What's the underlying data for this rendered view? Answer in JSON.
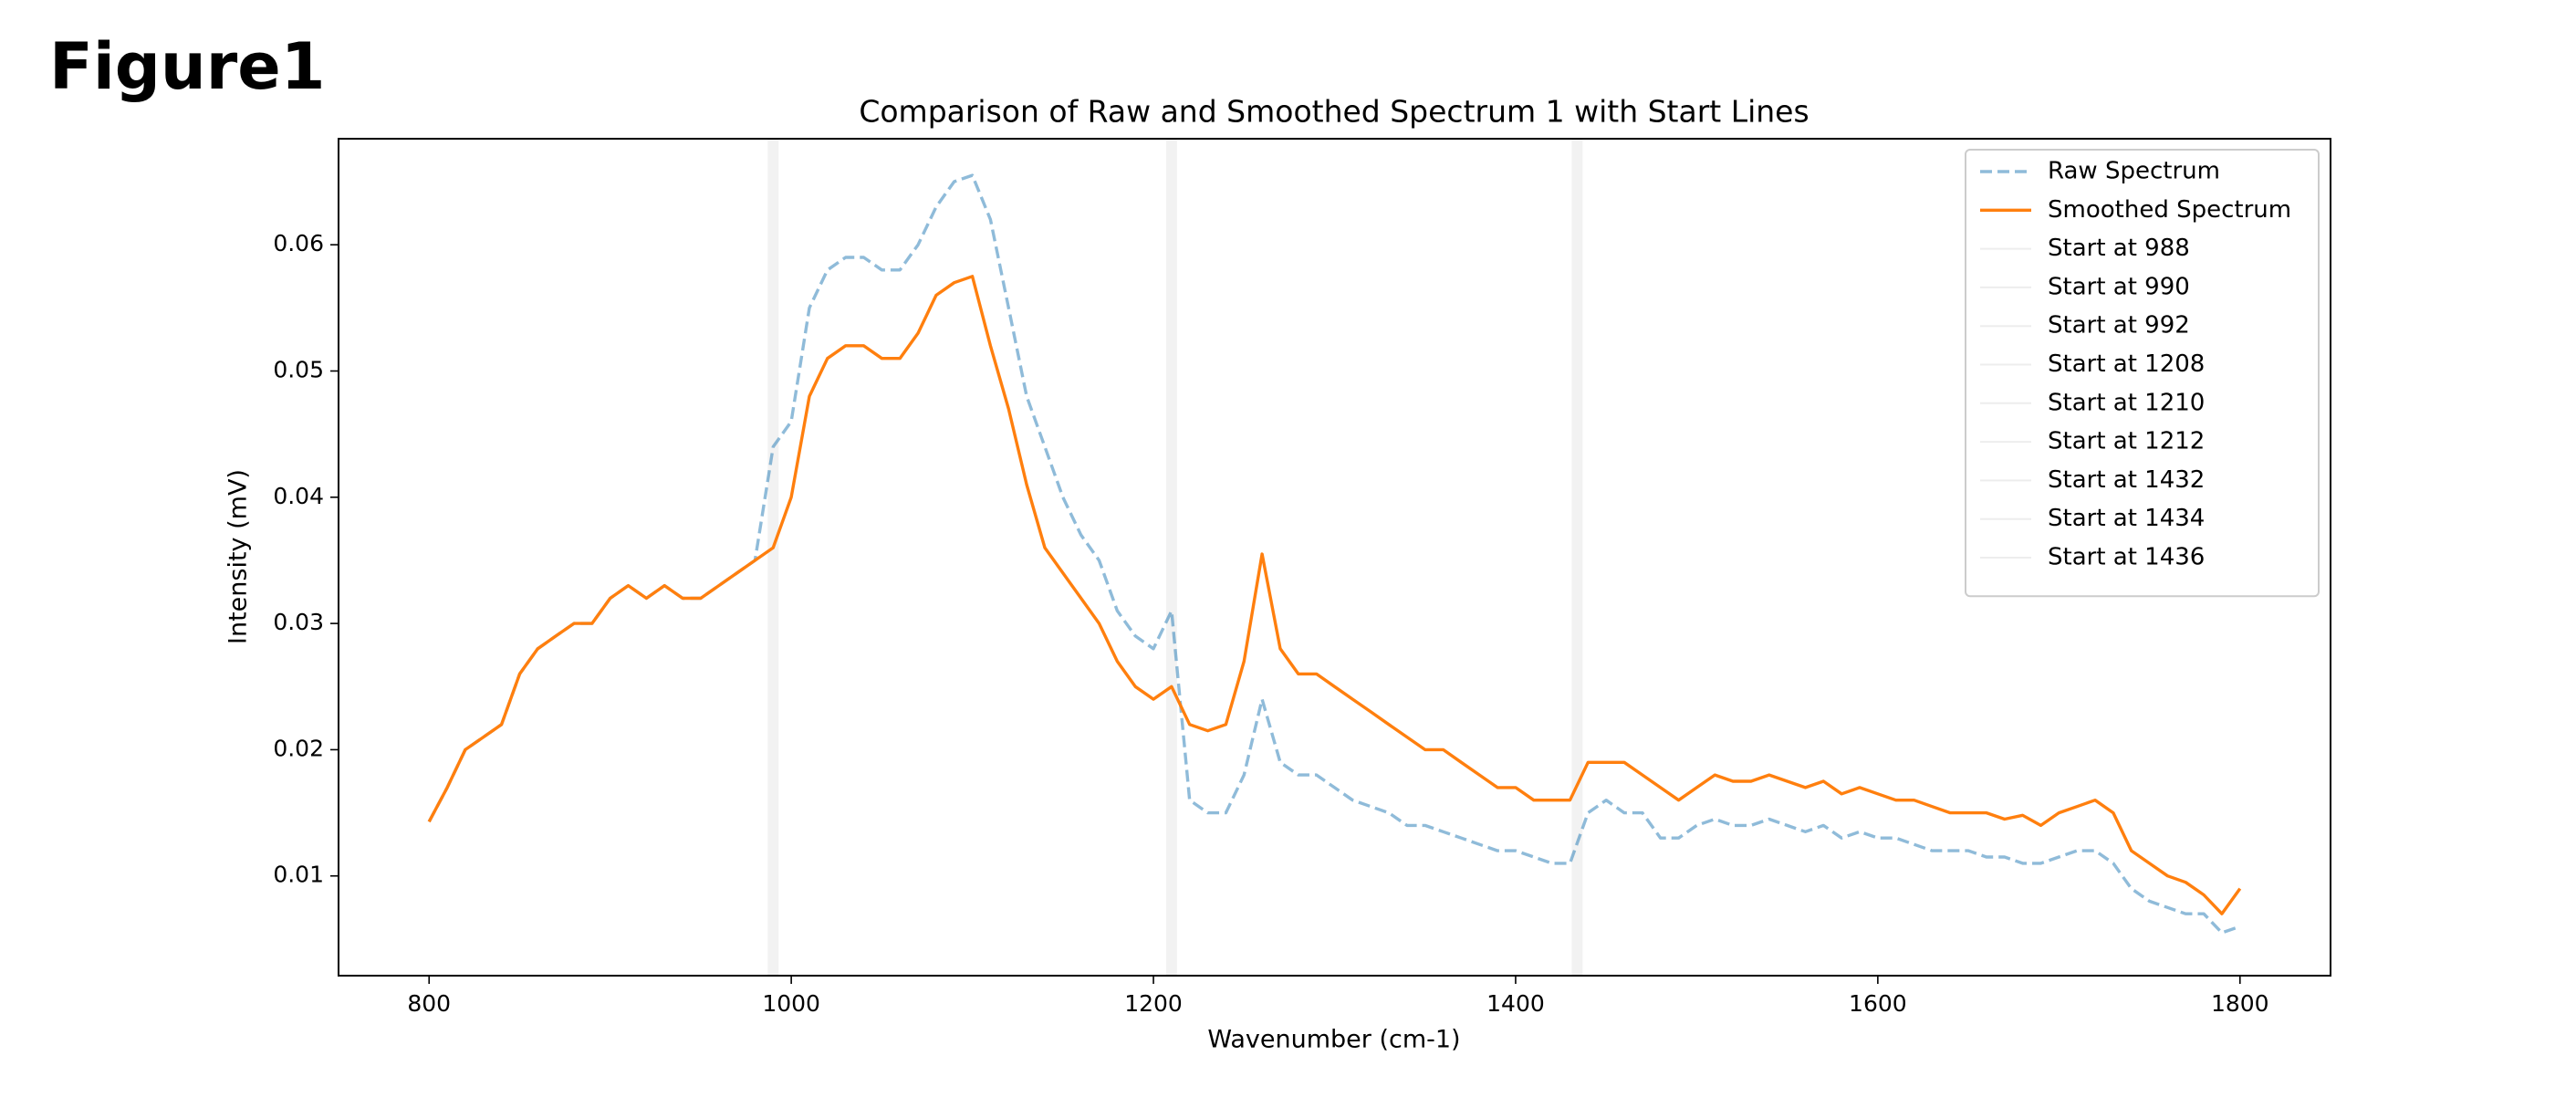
{
  "heading": "Figure1",
  "chart_data": {
    "type": "line",
    "title": "Comparison of Raw and Smoothed Spectrum 1 with Start Lines",
    "xlabel": "Wavenumber (cm-1)",
    "ylabel": "Intensity (mV)",
    "x": [
      800,
      810,
      820,
      830,
      840,
      850,
      860,
      870,
      880,
      890,
      900,
      910,
      920,
      930,
      940,
      950,
      960,
      970,
      980,
      990,
      1000,
      1010,
      1020,
      1030,
      1040,
      1050,
      1060,
      1070,
      1080,
      1090,
      1100,
      1110,
      1120,
      1130,
      1140,
      1150,
      1160,
      1170,
      1180,
      1190,
      1200,
      1210,
      1220,
      1230,
      1240,
      1250,
      1260,
      1270,
      1280,
      1290,
      1300,
      1310,
      1320,
      1330,
      1340,
      1350,
      1360,
      1370,
      1380,
      1390,
      1400,
      1410,
      1420,
      1430,
      1440,
      1450,
      1460,
      1470,
      1480,
      1490,
      1500,
      1510,
      1520,
      1530,
      1540,
      1550,
      1560,
      1570,
      1580,
      1590,
      1600,
      1610,
      1620,
      1630,
      1640,
      1650,
      1660,
      1670,
      1680,
      1690,
      1700,
      1710,
      1720,
      1730,
      1740,
      1750,
      1760,
      1770,
      1780,
      1790,
      1800
    ],
    "series": [
      {
        "name": "Raw Spectrum",
        "color": "#1f77b4",
        "dashed": true,
        "opacity": 0.5,
        "values": [
          0.0143,
          0.017,
          0.02,
          0.021,
          0.022,
          0.026,
          0.028,
          0.029,
          0.03,
          0.03,
          0.032,
          0.033,
          0.032,
          0.033,
          0.032,
          0.032,
          0.033,
          0.034,
          0.035,
          0.044,
          0.046,
          0.055,
          0.058,
          0.059,
          0.059,
          0.058,
          0.058,
          0.06,
          0.063,
          0.065,
          0.0655,
          0.062,
          0.055,
          0.048,
          0.044,
          0.04,
          0.037,
          0.035,
          0.031,
          0.029,
          0.028,
          0.031,
          0.016,
          0.015,
          0.015,
          0.018,
          0.024,
          0.019,
          0.018,
          0.018,
          0.017,
          0.016,
          0.0155,
          0.015,
          0.014,
          0.014,
          0.0135,
          0.013,
          0.0125,
          0.012,
          0.012,
          0.0115,
          0.011,
          0.011,
          0.015,
          0.016,
          0.015,
          0.015,
          0.013,
          0.013,
          0.014,
          0.0145,
          0.014,
          0.014,
          0.0145,
          0.014,
          0.0135,
          0.014,
          0.013,
          0.0135,
          0.013,
          0.013,
          0.0125,
          0.012,
          0.012,
          0.012,
          0.0115,
          0.0115,
          0.011,
          0.011,
          0.0115,
          0.012,
          0.012,
          0.011,
          0.009,
          0.008,
          0.0075,
          0.007,
          0.007,
          0.0055,
          0.006
        ]
      },
      {
        "name": "Smoothed Spectrum",
        "color": "#ff7f0e",
        "dashed": false,
        "opacity": 1,
        "values": [
          0.0143,
          0.017,
          0.02,
          0.021,
          0.022,
          0.026,
          0.028,
          0.029,
          0.03,
          0.03,
          0.032,
          0.033,
          0.032,
          0.033,
          0.032,
          0.032,
          0.033,
          0.034,
          0.035,
          0.036,
          0.04,
          0.048,
          0.051,
          0.052,
          0.052,
          0.051,
          0.051,
          0.053,
          0.056,
          0.057,
          0.0575,
          0.052,
          0.047,
          0.041,
          0.036,
          0.034,
          0.032,
          0.03,
          0.027,
          0.025,
          0.024,
          0.025,
          0.022,
          0.0215,
          0.022,
          0.027,
          0.0355,
          0.028,
          0.026,
          0.026,
          0.025,
          0.024,
          0.023,
          0.022,
          0.021,
          0.02,
          0.02,
          0.019,
          0.018,
          0.017,
          0.017,
          0.016,
          0.016,
          0.016,
          0.019,
          0.019,
          0.019,
          0.018,
          0.017,
          0.016,
          0.017,
          0.018,
          0.0175,
          0.0175,
          0.018,
          0.0175,
          0.017,
          0.0175,
          0.0165,
          0.017,
          0.0165,
          0.016,
          0.016,
          0.0155,
          0.015,
          0.015,
          0.015,
          0.0145,
          0.0148,
          0.014,
          0.015,
          0.0155,
          0.016,
          0.015,
          0.012,
          0.011,
          0.01,
          0.0095,
          0.0085,
          0.007,
          0.009
        ]
      }
    ],
    "start_lines": [
      {
        "name": "Start at 988",
        "value": 988
      },
      {
        "name": "Start at 990",
        "value": 990
      },
      {
        "name": "Start at 992",
        "value": 992
      },
      {
        "name": "Start at 1208",
        "value": 1208
      },
      {
        "name": "Start at 1210",
        "value": 1210
      },
      {
        "name": "Start at 1212",
        "value": 1212
      },
      {
        "name": "Start at 1432",
        "value": 1432
      },
      {
        "name": "Start at 1434",
        "value": 1434
      },
      {
        "name": "Start at 1436",
        "value": 1436
      }
    ],
    "start_line_color": "#d3d3d3",
    "xlim": [
      750,
      1850
    ],
    "xticks": [
      800,
      1000,
      1200,
      1400,
      1600,
      1800
    ],
    "ylim": [
      0.0021,
      0.0684
    ],
    "yticks": [
      0.01,
      0.02,
      0.03,
      0.04,
      0.05,
      0.06
    ],
    "grid": false,
    "legend": "upper right"
  }
}
